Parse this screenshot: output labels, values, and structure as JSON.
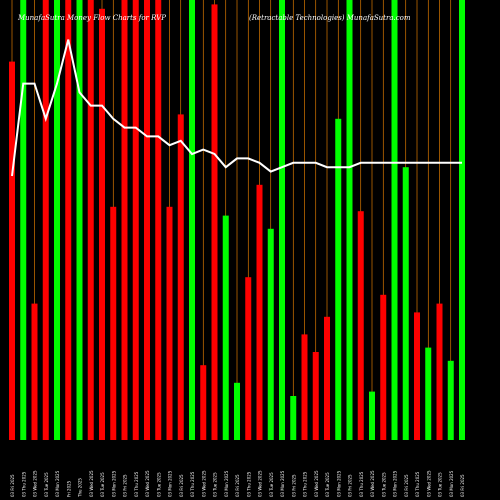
{
  "header": {
    "left_text": "MunafaSutra Money Flow Charts for RVP",
    "right_text": "(Retractable Technologies) MunafaSutra.com"
  },
  "chart_data": {
    "type": "bar",
    "title": "MunafaSutra Money Flow Charts for RVP",
    "subtitle": "(Retractable Technologies) MunafaSutra.com",
    "colors": {
      "up": "#00ff00",
      "down": "#ff0000",
      "line": "#ffffff",
      "guide": "#ff8c00",
      "background": "#000000"
    },
    "bars": [
      {
        "label": "03 Fri 2025",
        "color": "red",
        "value": 0.86
      },
      {
        "label": "03 Thu 2025",
        "color": "green",
        "value": 1.0
      },
      {
        "label": "03 Wed 2025",
        "color": "red",
        "value": 0.31
      },
      {
        "label": "03 Tue 2025",
        "color": "red",
        "value": 1.0
      },
      {
        "label": "03 Mon 2025",
        "color": "green",
        "value": 1.0
      },
      {
        "label": "Fri 2025",
        "color": "red",
        "value": 1.0
      },
      {
        "label": "Thu 2025",
        "color": "green",
        "value": 1.0
      },
      {
        "label": "03 Wed 2025",
        "color": "red",
        "value": 1.0
      },
      {
        "label": "03 Tue 2025",
        "color": "red",
        "value": 0.98
      },
      {
        "label": "03 Mon 2025",
        "color": "red",
        "value": 0.53
      },
      {
        "label": "03 Fri 2025",
        "color": "red",
        "value": 1.0
      },
      {
        "label": "03 Thu 2025",
        "color": "red",
        "value": 1.0
      },
      {
        "label": "03 Wed 2025",
        "color": "red",
        "value": 1.0
      },
      {
        "label": "03 Tue 2025",
        "color": "red",
        "value": 1.0
      },
      {
        "label": "03 Mon 2025",
        "color": "red",
        "value": 0.53
      },
      {
        "label": "03 Fri 2025",
        "color": "red",
        "value": 0.74
      },
      {
        "label": "03 Thu 2025",
        "color": "green",
        "value": 1.0
      },
      {
        "label": "03 Wed 2025",
        "color": "red",
        "value": 0.17
      },
      {
        "label": "03 Tue 2025",
        "color": "red",
        "value": 0.99
      },
      {
        "label": "03 Mon 2025",
        "color": "green",
        "value": 0.51
      },
      {
        "label": "03 Fri 2025",
        "color": "green",
        "value": 0.13
      },
      {
        "label": "03 Thu 2025",
        "color": "red",
        "value": 0.37
      },
      {
        "label": "03 Wed 2025",
        "color": "red",
        "value": 0.58
      },
      {
        "label": "03 Tue 2025",
        "color": "green",
        "value": 0.48
      },
      {
        "label": "03 Mon 2025",
        "color": "green",
        "value": 1.0
      },
      {
        "label": "03 Fri 2025",
        "color": "green",
        "value": 0.1
      },
      {
        "label": "03 Thu 2025",
        "color": "red",
        "value": 0.24
      },
      {
        "label": "03 Wed 2025",
        "color": "red",
        "value": 0.2
      },
      {
        "label": "03 Tue 2025",
        "color": "red",
        "value": 0.28
      },
      {
        "label": "03 Mon 2025",
        "color": "green",
        "value": 0.73
      },
      {
        "label": "03 Fri 2025",
        "color": "green",
        "value": 1.0
      },
      {
        "label": "03 Thu 2025",
        "color": "red",
        "value": 0.52
      },
      {
        "label": "03 Wed 2025",
        "color": "green",
        "value": 0.11
      },
      {
        "label": "03 Tue 2025",
        "color": "red",
        "value": 0.33
      },
      {
        "label": "03 Mon 2025",
        "color": "green",
        "value": 1.0
      },
      {
        "label": "03 Fri 2025",
        "color": "green",
        "value": 0.62
      },
      {
        "label": "03 Thu 2025",
        "color": "red",
        "value": 0.29
      },
      {
        "label": "03 Wed 2025",
        "color": "green",
        "value": 0.21
      },
      {
        "label": "03 Tue 2025",
        "color": "red",
        "value": 0.31
      },
      {
        "label": "03 Mon 2025",
        "color": "green",
        "value": 0.18
      },
      {
        "label": "03 Fri 2025",
        "color": "green",
        "value": 1.0
      }
    ],
    "line": [
      0.6,
      0.81,
      0.81,
      0.73,
      0.81,
      0.91,
      0.79,
      0.76,
      0.76,
      0.73,
      0.71,
      0.71,
      0.69,
      0.69,
      0.67,
      0.68,
      0.65,
      0.66,
      0.65,
      0.62,
      0.64,
      0.64,
      0.63,
      0.61,
      0.62,
      0.63,
      0.63,
      0.63,
      0.62,
      0.62,
      0.62,
      0.63,
      0.63,
      0.63,
      0.63,
      0.63,
      0.63,
      0.63,
      0.63,
      0.63,
      0.63
    ]
  }
}
